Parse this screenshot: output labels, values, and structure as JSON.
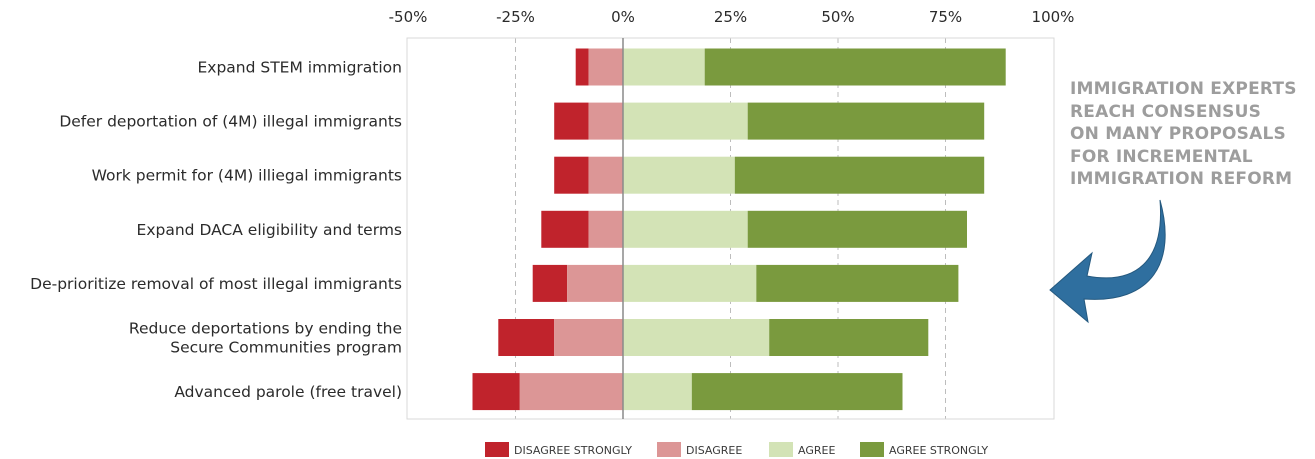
{
  "chart_data": {
    "type": "bar",
    "orientation": "horizontal",
    "stacked": "diverging",
    "title": "",
    "xlabel": "",
    "ylabel": "",
    "xlim": [
      -50,
      100
    ],
    "x_tick_labels": [
      "-50%",
      "-25%",
      "0%",
      "25%",
      "50%",
      "75%",
      "100%"
    ],
    "x_axis_position": "top",
    "grid": "vertical dashed",
    "legend_position": "bottom",
    "categories": [
      [
        "Expand STEM immigration"
      ],
      [
        "Defer deportation of (4M) illegal immigrants"
      ],
      [
        "Work permit for (4M) illiegal immigrants"
      ],
      [
        "Expand DACA eligibility and terms"
      ],
      [
        "De-prioritize removal of most illegal immigrants"
      ],
      [
        "Reduce deportations by ending the",
        "Secure Communities program"
      ],
      [
        "Advanced parole (free travel)"
      ]
    ],
    "series": [
      {
        "name": "DISAGREE STRONGLY",
        "color": "#c0232c",
        "values": [
          3,
          8,
          8,
          11,
          8,
          13,
          11
        ]
      },
      {
        "name": "DISAGREE",
        "color": "#dc9696",
        "values": [
          8,
          8,
          8,
          8,
          13,
          16,
          24
        ]
      },
      {
        "name": "AGREE",
        "color": "#d3e3b6",
        "values": [
          19,
          29,
          26,
          29,
          31,
          34,
          16
        ]
      },
      {
        "name": "AGREE STRONGLY",
        "color": "#7a9a3e",
        "values": [
          70,
          55,
          58,
          51,
          47,
          37,
          49
        ]
      }
    ]
  },
  "annotation": {
    "lines": [
      "IMMIGRATION EXPERTS",
      "REACH CONSENSUS",
      "ON MANY PROPOSALS",
      "FOR INCREMENTAL",
      "IMMIGRATION REFORM"
    ],
    "color": "#9d9d9d",
    "arrow_color": "#2f6f9f"
  }
}
